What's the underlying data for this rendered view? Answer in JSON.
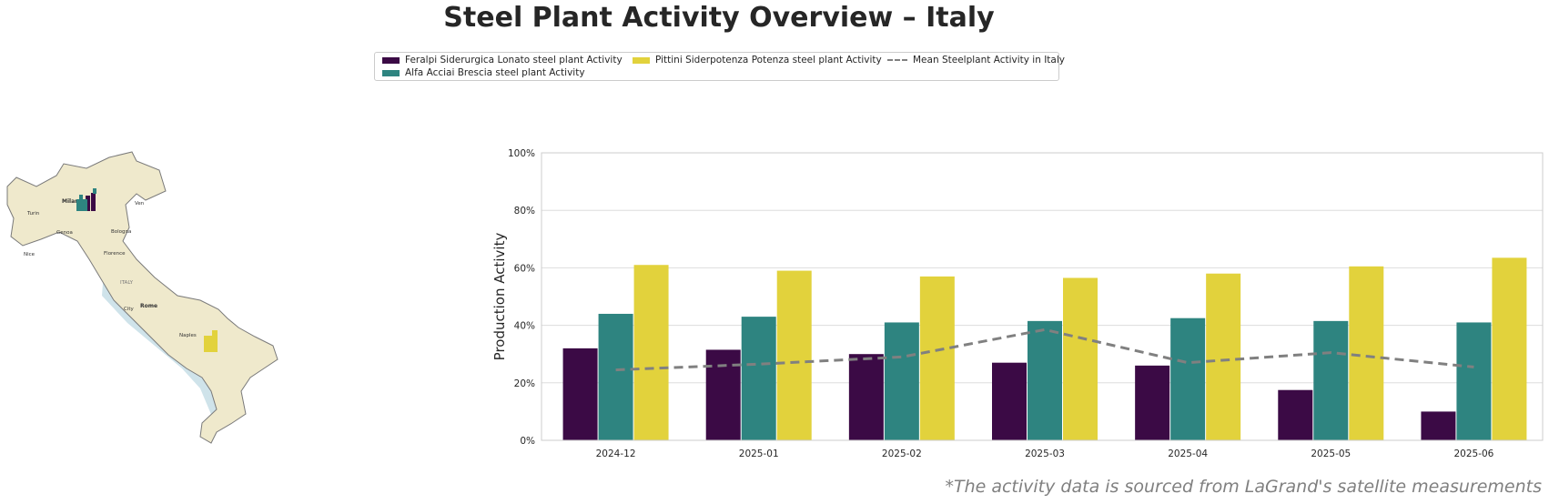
{
  "title": "Steel Plant Activity Overview – Italy",
  "legend": [
    {
      "label": "Feralpi Siderurgica Lonato steel plant Activity",
      "color": "#3b0a45",
      "type": "bar"
    },
    {
      "label": "Alfa Acciai Brescia steel plant Activity",
      "color": "#2e8480",
      "type": "bar"
    },
    {
      "label": "Pittini Siderpotenza Potenza steel plant Activity",
      "color": "#e2d23c",
      "type": "bar"
    },
    {
      "label": "Mean Steelplant Activity in Italy",
      "color": "#808080",
      "type": "dashed-line"
    }
  ],
  "map": {
    "labels": [
      "Milan",
      "Turin",
      "Genoa",
      "Bologna",
      "Florence",
      "ITALY",
      "Rome",
      "City",
      "Naples",
      "Nice",
      "Ven"
    ],
    "colors": {
      "land": "#efe9cc",
      "border": "#7a7a7a",
      "sea": "#cfe3ea"
    }
  },
  "chart_data": {
    "type": "bar",
    "categories": [
      "2024-12",
      "2025-01",
      "2025-02",
      "2025-03",
      "2025-04",
      "2025-05",
      "2025-06"
    ],
    "series": [
      {
        "name": "Feralpi Siderurgica Lonato steel plant Activity",
        "color": "#3b0a45",
        "values": [
          32,
          31.5,
          30,
          27,
          26,
          17.5,
          10
        ]
      },
      {
        "name": "Alfa Acciai Brescia steel plant Activity",
        "color": "#2e8480",
        "values": [
          44,
          43,
          41,
          41.5,
          42.5,
          41.5,
          41
        ]
      },
      {
        "name": "Pittini Siderpotenza Potenza steel plant Activity",
        "color": "#e2d23c",
        "values": [
          61,
          59,
          57,
          56.5,
          58,
          60.5,
          63.5
        ]
      }
    ],
    "mean_line": {
      "name": "Mean Steelplant Activity in Italy",
      "color": "#808080",
      "style": "dashed",
      "values": [
        24.5,
        26.5,
        29,
        38.5,
        27,
        30.5,
        25.5
      ]
    },
    "ylabel": "Production Activity",
    "xlabel": "",
    "ylim": [
      0,
      100
    ],
    "yticks": [
      "0%",
      "20%",
      "40%",
      "60%",
      "80%",
      "100%"
    ],
    "ytick_values": [
      0,
      20,
      40,
      60,
      80,
      100
    ],
    "grid": true,
    "legend_position": "top-center"
  },
  "footnote": "*The activity data is sourced from LaGrand's satellite measurements"
}
